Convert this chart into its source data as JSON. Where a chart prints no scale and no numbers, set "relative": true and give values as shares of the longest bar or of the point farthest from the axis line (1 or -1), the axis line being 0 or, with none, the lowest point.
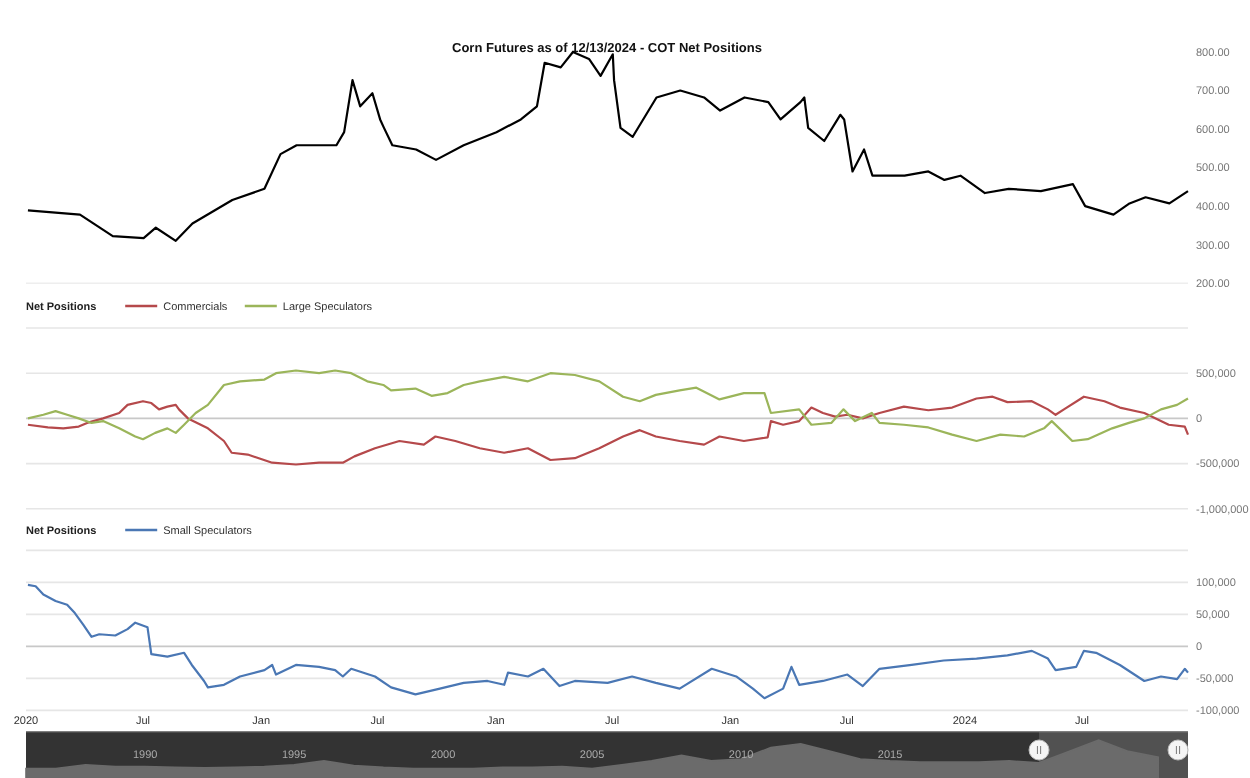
{
  "chart_data": [
    {
      "type": "line",
      "title": "Corn Futures as of 12/13/2024 - COT Net Positions",
      "xlim": [
        "2020-01-01",
        "2024-12-13"
      ],
      "ylim": [
        200,
        800
      ],
      "yticks": [
        {
          "value": 200,
          "label": "200.00"
        },
        {
          "value": 300,
          "label": "300.00"
        },
        {
          "value": 400,
          "label": "400.00"
        },
        {
          "value": 500,
          "label": "500.00"
        },
        {
          "value": 600,
          "label": "600.00"
        },
        {
          "value": 700,
          "label": "700.00"
        },
        {
          "value": 800,
          "label": "800.00"
        }
      ],
      "tick_labels": "y",
      "grid": false,
      "legend": false,
      "series": [
        {
          "color": "#000000",
          "x": [
            "2020-01-04",
            "2020-03-25",
            "2020-05-15",
            "2020-07-02",
            "2020-07-21",
            "2020-08-21",
            "2020-09-16",
            "2020-11-17",
            "2021-01-06",
            "2021-01-31",
            "2021-02-25",
            "2021-04-28",
            "2021-05-10",
            "2021-05-23",
            "2021-06-04",
            "2021-06-23",
            "2021-07-05",
            "2021-07-11",
            "2021-07-24",
            "2021-08-30",
            "2021-09-30",
            "2021-11-12",
            "2022-01-02",
            "2022-02-09",
            "2022-03-06",
            "2022-03-18",
            "2022-04-12",
            "2022-05-01",
            "2022-05-26",
            "2022-06-13",
            "2022-07-02",
            "2022-07-04",
            "2022-07-14",
            "2022-08-02",
            "2022-09-08",
            "2022-10-15",
            "2022-11-21",
            "2022-12-16",
            "2023-01-23",
            "2023-03-01",
            "2023-03-20",
            "2023-04-20",
            "2023-04-26",
            "2023-05-02",
            "2023-05-27",
            "2023-06-21",
            "2023-06-27",
            "2023-07-10",
            "2023-07-28",
            "2023-08-10",
            "2023-09-29",
            "2023-11-05",
            "2023-11-30",
            "2023-12-25",
            "2024-02-01",
            "2024-03-09",
            "2024-04-28",
            "2024-06-17",
            "2024-07-06",
            "2024-08-19",
            "2024-09-13",
            "2024-10-08",
            "2024-11-14",
            "2024-12-13"
          ],
          "values": [
            389,
            378,
            322,
            317,
            344,
            310,
            355,
            416,
            445,
            535,
            558,
            558,
            592,
            727,
            659,
            693,
            625,
            603,
            558,
            547,
            520,
            558,
            592,
            625,
            659,
            772,
            760,
            800,
            782,
            738,
            794,
            727,
            603,
            580,
            682,
            700,
            682,
            648,
            682,
            670,
            625,
            670,
            682,
            603,
            569,
            637,
            625,
            490,
            547,
            479,
            479,
            490,
            468,
            479,
            434,
            445,
            439,
            457,
            400,
            378,
            407,
            423,
            407,
            439
          ]
        }
      ]
    },
    {
      "type": "line",
      "legend": "top left",
      "legend_title": "Net Positions",
      "xlim": [
        "2020-01-01",
        "2024-12-13"
      ],
      "ylim": [
        -1000000,
        1000000
      ],
      "yticks": [
        {
          "value": -1000000,
          "label": "-1,000,000"
        },
        {
          "value": -500000,
          "label": "-500,000"
        },
        0,
        {
          "value": 500000,
          "label": "500,000"
        },
        {
          "value": 1000000,
          "label": null
        }
      ],
      "tick_labels": "y",
      "grid": "y",
      "series": [
        {
          "name": "Commercials",
          "color": "#b5494b",
          "x": [
            "2020-01-04",
            "2020-02-04",
            "2020-02-28",
            "2020-03-23",
            "2020-04-05",
            "2020-04-30",
            "2020-05-25",
            "2020-06-07",
            "2020-07-01",
            "2020-07-14",
            "2020-07-26",
            "2020-08-08",
            "2020-08-21",
            "2020-08-26",
            "2020-09-09",
            "2020-10-10",
            "2020-11-04",
            "2020-11-16",
            "2020-12-11",
            "2021-01-18",
            "2021-02-24",
            "2021-04-01",
            "2021-05-08",
            "2021-05-26",
            "2021-06-27",
            "2021-08-04",
            "2021-09-11",
            "2021-09-29",
            "2021-10-30",
            "2021-12-07",
            "2022-01-14",
            "2022-02-20",
            "2022-03-27",
            "2022-05-04",
            "2022-06-11",
            "2022-07-18",
            "2022-08-13",
            "2022-09-07",
            "2022-10-14",
            "2022-11-21",
            "2022-12-15",
            "2023-01-22",
            "2023-02-28",
            "2023-03-05",
            "2023-03-24",
            "2023-04-18",
            "2023-05-07",
            "2023-05-25",
            "2023-06-13",
            "2023-07-02",
            "2023-07-26",
            "2023-08-21",
            "2023-09-28",
            "2023-11-05",
            "2023-12-12",
            "2024-01-19",
            "2024-02-13",
            "2024-03-07",
            "2024-04-14",
            "2024-05-09",
            "2024-05-21",
            "2024-06-03",
            "2024-07-04",
            "2024-08-05",
            "2024-08-29",
            "2024-10-06",
            "2024-11-13",
            "2024-12-08",
            "2024-12-13"
          ],
          "values": [
            -70000,
            -100000,
            -110000,
            -90000,
            -50000,
            0,
            60000,
            150000,
            190000,
            170000,
            100000,
            130000,
            150000,
            100000,
            0,
            -110000,
            -250000,
            -380000,
            -400000,
            -490000,
            -510000,
            -490000,
            -490000,
            -420000,
            -330000,
            -250000,
            -290000,
            -200000,
            -250000,
            -330000,
            -380000,
            -330000,
            -460000,
            -440000,
            -330000,
            -200000,
            -130000,
            -200000,
            -250000,
            -290000,
            -200000,
            -250000,
            -210000,
            -30000,
            -70000,
            -30000,
            120000,
            60000,
            20000,
            40000,
            0,
            60000,
            130000,
            90000,
            120000,
            220000,
            240000,
            180000,
            190000,
            100000,
            40000,
            100000,
            240000,
            190000,
            120000,
            60000,
            -70000,
            -90000,
            -180000
          ]
        },
        {
          "name": "Large Speculators",
          "color": "#9bb55a",
          "x": [
            "2020-01-04",
            "2020-01-28",
            "2020-02-16",
            "2020-03-05",
            "2020-03-23",
            "2020-04-12",
            "2020-04-30",
            "2020-05-25",
            "2020-06-19",
            "2020-07-01",
            "2020-07-20",
            "2020-08-08",
            "2020-08-21",
            "2020-09-03",
            "2020-09-21",
            "2020-10-10",
            "2020-11-04",
            "2020-11-29",
            "2021-01-06",
            "2021-01-24",
            "2021-02-24",
            "2021-04-01",
            "2021-04-26",
            "2021-05-21",
            "2021-06-15",
            "2021-07-10",
            "2021-07-22",
            "2021-08-29",
            "2021-09-23",
            "2021-10-18",
            "2021-11-12",
            "2021-12-07",
            "2022-01-14",
            "2022-02-20",
            "2022-03-27",
            "2022-05-04",
            "2022-06-11",
            "2022-07-18",
            "2022-08-13",
            "2022-09-07",
            "2022-10-14",
            "2022-11-09",
            "2022-12-15",
            "2023-01-22",
            "2023-02-23",
            "2023-03-05",
            "2023-04-18",
            "2023-05-07",
            "2023-06-07",
            "2023-06-26",
            "2023-07-14",
            "2023-08-09",
            "2023-08-21",
            "2023-09-28",
            "2023-11-05",
            "2023-12-12",
            "2024-01-19",
            "2024-02-25",
            "2024-04-02",
            "2024-05-03",
            "2024-05-15",
            "2024-06-03",
            "2024-06-16",
            "2024-07-10",
            "2024-08-17",
            "2024-09-12",
            "2024-10-06",
            "2024-11-01",
            "2024-11-26",
            "2024-12-13"
          ],
          "values": [
            0,
            40000,
            80000,
            40000,
            0,
            -50000,
            -30000,
            -110000,
            -200000,
            -230000,
            -160000,
            -110000,
            -160000,
            -70000,
            60000,
            150000,
            370000,
            410000,
            430000,
            500000,
            530000,
            500000,
            530000,
            500000,
            410000,
            370000,
            310000,
            330000,
            250000,
            280000,
            370000,
            410000,
            460000,
            410000,
            500000,
            480000,
            410000,
            240000,
            190000,
            260000,
            310000,
            340000,
            210000,
            280000,
            280000,
            60000,
            100000,
            -70000,
            -50000,
            100000,
            -30000,
            60000,
            -50000,
            -70000,
            -100000,
            -180000,
            -250000,
            -180000,
            -200000,
            -110000,
            -30000,
            -160000,
            -250000,
            -230000,
            -110000,
            -50000,
            0,
            100000,
            150000,
            220000
          ]
        }
      ]
    },
    {
      "type": "line",
      "legend": "top left",
      "legend_title": "Net Positions",
      "xlim": [
        "2020-01-01",
        "2024-12-13"
      ],
      "ylim": [
        -100000,
        150000
      ],
      "yticks": [
        {
          "value": -100000,
          "label": "-100,000"
        },
        {
          "value": -50000,
          "label": "-50,000"
        },
        0,
        {
          "value": 50000,
          "label": "50,000"
        },
        {
          "value": 100000,
          "label": "100,000"
        },
        {
          "value": 150000,
          "label": null
        }
      ],
      "xticks": [
        {
          "value": "2020-01-01",
          "label": "2020"
        },
        {
          "value": "2020-07-01",
          "label": "Jul"
        },
        {
          "value": "2021-01-01",
          "label": "Jan"
        },
        {
          "value": "2021-07-01",
          "label": "Jul"
        },
        {
          "value": "2022-01-01",
          "label": "Jan"
        },
        {
          "value": "2022-07-01",
          "label": "Jul"
        },
        {
          "value": "2023-01-01",
          "label": "Jan"
        },
        {
          "value": "2023-07-01",
          "label": "Jul"
        },
        {
          "value": "2024-01-01",
          "label": "2024"
        },
        {
          "value": "2024-07-01",
          "label": "Jul"
        }
      ],
      "grid": "y",
      "series": [
        {
          "name": "Small Speculators",
          "color": "#4a77b4",
          "x": [
            "2020-01-04",
            "2020-01-16",
            "2020-01-28",
            "2020-02-16",
            "2020-03-05",
            "2020-03-17",
            "2020-03-30",
            "2020-04-12",
            "2020-04-24",
            "2020-05-19",
            "2020-06-07",
            "2020-06-19",
            "2020-07-08",
            "2020-07-14",
            "2020-08-08",
            "2020-09-03",
            "2020-09-15",
            "2020-10-04",
            "2020-10-10",
            "2020-11-04",
            "2020-11-29",
            "2021-01-06",
            "2021-01-18",
            "2021-01-24",
            "2021-02-24",
            "2021-04-01",
            "2021-04-26",
            "2021-05-08",
            "2021-05-21",
            "2021-06-27",
            "2021-07-22",
            "2021-08-29",
            "2021-10-06",
            "2021-11-12",
            "2021-12-19",
            "2022-01-14",
            "2022-01-20",
            "2022-02-20",
            "2022-03-16",
            "2022-04-10",
            "2022-05-04",
            "2022-06-24",
            "2022-08-01",
            "2022-09-07",
            "2022-10-14",
            "2022-12-03",
            "2023-01-10",
            "2023-02-05",
            "2023-02-23",
            "2023-03-24",
            "2023-04-06",
            "2023-04-18",
            "2023-05-25",
            "2023-07-02",
            "2023-07-26",
            "2023-08-21",
            "2023-10-10",
            "2023-11-29",
            "2024-01-19",
            "2024-03-07",
            "2024-04-14",
            "2024-05-09",
            "2024-05-21",
            "2024-06-22",
            "2024-07-04",
            "2024-07-23",
            "2024-08-29",
            "2024-10-06",
            "2024-11-01",
            "2024-11-26",
            "2024-12-08",
            "2024-12-13"
          ],
          "values": [
            96000,
            94000,
            81000,
            71000,
            65000,
            52000,
            34000,
            15000,
            19000,
            17000,
            27000,
            37000,
            30000,
            -12000,
            -16000,
            -10000,
            -29000,
            -54000,
            -64000,
            -60000,
            -47000,
            -37000,
            -29000,
            -44000,
            -29000,
            -32000,
            -37000,
            -47000,
            -35000,
            -47000,
            -64000,
            -75000,
            -66000,
            -57000,
            -54000,
            -60000,
            -41000,
            -47000,
            -35000,
            -62000,
            -54000,
            -57000,
            -47000,
            -57000,
            -66000,
            -35000,
            -47000,
            -66000,
            -81000,
            -66000,
            -32000,
            -60000,
            -54000,
            -44000,
            -62000,
            -35000,
            -29000,
            -22000,
            -19000,
            -14000,
            -7000,
            -19000,
            -37000,
            -32000,
            -7000,
            -10000,
            -29000,
            -54000,
            -47000,
            -51000,
            -35000,
            -41000
          ]
        }
      ]
    },
    {
      "type": "area",
      "relative": true,
      "xlim": [
        1986,
        2025
      ],
      "xticks": [
        1990,
        1995,
        2000,
        2005,
        2010,
        2015
      ],
      "tick_labels": "x",
      "bands": [
        {
          "axis": "x",
          "from": 2020,
          "to": 2025,
          "color": "#8a8a8a"
        }
      ],
      "series": [
        {
          "color": "#6b6b6b",
          "x": [
            1986,
            1987,
            1988,
            1989,
            1990,
            1991,
            1992,
            1993,
            1994,
            1995,
            1996,
            1997,
            1998,
            1999,
            2000,
            2001,
            2002,
            2003,
            2004,
            2005,
            2006,
            2007,
            2008,
            2009,
            2010,
            2011,
            2012,
            2013,
            2014,
            2015,
            2016,
            2017,
            2018,
            2019,
            2020,
            2021,
            2022,
            2023,
            2024
          ],
          "values": [
            0.25,
            0.25,
            0.35,
            0.3,
            0.3,
            0.28,
            0.27,
            0.28,
            0.3,
            0.35,
            0.45,
            0.33,
            0.28,
            0.25,
            0.25,
            0.25,
            0.28,
            0.28,
            0.3,
            0.25,
            0.35,
            0.45,
            0.6,
            0.45,
            0.5,
            0.8,
            0.9,
            0.7,
            0.5,
            0.45,
            0.42,
            0.42,
            0.42,
            0.45,
            0.4,
            0.7,
            1,
            0.7,
            0.55
          ]
        }
      ]
    }
  ]
}
